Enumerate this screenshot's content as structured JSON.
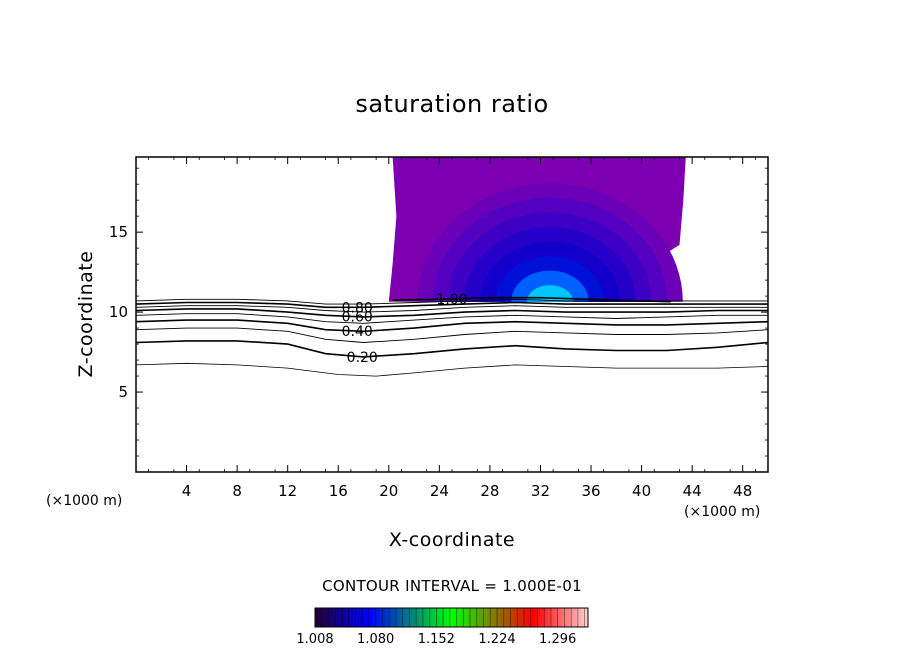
{
  "chart_data": {
    "type": "contour",
    "title": "saturation ratio",
    "xlabel": "X-coordinate",
    "ylabel": "Z-coordinate",
    "x_unit_left": "(×1000 m)",
    "x_unit_right": "(×1000 m)",
    "xlim": [
      0,
      50
    ],
    "ylim": [
      0,
      19.7
    ],
    "x_ticks": [
      4,
      8,
      12,
      16,
      20,
      24,
      28,
      32,
      36,
      40,
      44,
      48
    ],
    "y_ticks": [
      5,
      10,
      15
    ],
    "contour_levels": [
      {
        "value": 0.2,
        "label": "0.20",
        "label_x": 17.9,
        "points": [
          [
            0,
            8.1
          ],
          [
            4,
            8.2
          ],
          [
            8,
            8.2
          ],
          [
            12,
            8.0
          ],
          [
            15,
            7.4
          ],
          [
            18,
            7.2
          ],
          [
            22,
            7.4
          ],
          [
            26,
            7.7
          ],
          [
            30,
            7.9
          ],
          [
            34,
            7.7
          ],
          [
            38,
            7.6
          ],
          [
            42,
            7.6
          ],
          [
            46,
            7.8
          ],
          [
            50,
            8.1
          ]
        ]
      },
      {
        "value": 0.3,
        "label": "",
        "points": [
          [
            0,
            8.9
          ],
          [
            4,
            9.0
          ],
          [
            8,
            9.0
          ],
          [
            12,
            8.8
          ],
          [
            15,
            8.3
          ],
          [
            18,
            8.1
          ],
          [
            22,
            8.3
          ],
          [
            26,
            8.6
          ],
          [
            30,
            8.8
          ],
          [
            34,
            8.7
          ],
          [
            38,
            8.6
          ],
          [
            42,
            8.6
          ],
          [
            46,
            8.7
          ],
          [
            50,
            8.9
          ]
        ]
      },
      {
        "value": 0.4,
        "label": "0.40",
        "label_x": 17.5,
        "points": [
          [
            0,
            9.4
          ],
          [
            4,
            9.5
          ],
          [
            8,
            9.5
          ],
          [
            12,
            9.3
          ],
          [
            15,
            8.9
          ],
          [
            18,
            8.8
          ],
          [
            22,
            9.0
          ],
          [
            26,
            9.3
          ],
          [
            30,
            9.4
          ],
          [
            34,
            9.3
          ],
          [
            38,
            9.2
          ],
          [
            42,
            9.2
          ],
          [
            46,
            9.3
          ],
          [
            50,
            9.4
          ]
        ]
      },
      {
        "value": 0.5,
        "label": "",
        "points": [
          [
            0,
            9.8
          ],
          [
            4,
            9.9
          ],
          [
            8,
            9.9
          ],
          [
            12,
            9.7
          ],
          [
            15,
            9.4
          ],
          [
            18,
            9.3
          ],
          [
            22,
            9.5
          ],
          [
            26,
            9.7
          ],
          [
            30,
            9.8
          ],
          [
            34,
            9.7
          ],
          [
            38,
            9.6
          ],
          [
            42,
            9.7
          ],
          [
            46,
            9.8
          ],
          [
            50,
            9.8
          ]
        ]
      },
      {
        "value": 0.6,
        "label": "0.60",
        "label_x": 17.5,
        "points": [
          [
            0,
            10.1
          ],
          [
            4,
            10.2
          ],
          [
            8,
            10.2
          ],
          [
            12,
            10.0
          ],
          [
            15,
            9.8
          ],
          [
            18,
            9.7
          ],
          [
            22,
            9.8
          ],
          [
            26,
            10.0
          ],
          [
            30,
            10.1
          ],
          [
            34,
            10.0
          ],
          [
            38,
            10.0
          ],
          [
            42,
            10.0
          ],
          [
            46,
            10.1
          ],
          [
            50,
            10.1
          ]
        ]
      },
      {
        "value": 0.7,
        "label": "",
        "points": [
          [
            0,
            10.3
          ],
          [
            4,
            10.4
          ],
          [
            8,
            10.4
          ],
          [
            12,
            10.3
          ],
          [
            15,
            10.1
          ],
          [
            18,
            10.0
          ],
          [
            22,
            10.1
          ],
          [
            26,
            10.3
          ],
          [
            30,
            10.4
          ],
          [
            34,
            10.3
          ],
          [
            38,
            10.3
          ],
          [
            42,
            10.3
          ],
          [
            46,
            10.3
          ],
          [
            50,
            10.3
          ]
        ]
      },
      {
        "value": 0.8,
        "label": "0.80",
        "label_x": 17.5,
        "points": [
          [
            0,
            10.5
          ],
          [
            4,
            10.6
          ],
          [
            8,
            10.6
          ],
          [
            12,
            10.5
          ],
          [
            15,
            10.3
          ],
          [
            18,
            10.3
          ],
          [
            22,
            10.4
          ],
          [
            26,
            10.5
          ],
          [
            30,
            10.6
          ],
          [
            34,
            10.5
          ],
          [
            38,
            10.5
          ],
          [
            42,
            10.5
          ],
          [
            46,
            10.5
          ],
          [
            50,
            10.5
          ]
        ]
      },
      {
        "value": 0.9,
        "label": "",
        "points": [
          [
            0,
            10.7
          ],
          [
            4,
            10.8
          ],
          [
            8,
            10.8
          ],
          [
            12,
            10.7
          ],
          [
            15,
            10.5
          ],
          [
            18,
            10.5
          ],
          [
            22,
            10.6
          ],
          [
            26,
            10.7
          ],
          [
            30,
            10.8
          ],
          [
            34,
            10.7
          ],
          [
            38,
            10.7
          ],
          [
            42,
            10.7
          ],
          [
            46,
            10.7
          ],
          [
            50,
            10.7
          ]
        ]
      },
      {
        "value": 1.0,
        "label": "1.00",
        "label_x": 25.0,
        "points": [
          [
            20.3,
            10.75
          ],
          [
            24,
            10.8
          ],
          [
            28,
            10.9
          ],
          [
            32,
            10.9
          ],
          [
            36,
            10.8
          ],
          [
            40,
            10.7
          ],
          [
            42.3,
            10.65
          ]
        ]
      }
    ],
    "lower_contour": {
      "points": [
        [
          0,
          6.7
        ],
        [
          4,
          6.8
        ],
        [
          8,
          6.7
        ],
        [
          12,
          6.5
        ],
        [
          16,
          6.1
        ],
        [
          19,
          6.0
        ],
        [
          22,
          6.2
        ],
        [
          26,
          6.5
        ],
        [
          30,
          6.7
        ],
        [
          34,
          6.6
        ],
        [
          38,
          6.5
        ],
        [
          42,
          6.5
        ],
        [
          46,
          6.5
        ],
        [
          50,
          6.6
        ]
      ]
    },
    "supersaturated_region": {
      "x_range": [
        20.0,
        43.5
      ],
      "z_range": [
        10.65,
        19.7
      ],
      "colors": [
        "#7d00b0",
        "#6a00b8",
        "#5400c0",
        "#3d00c4",
        "#2600c8",
        "#1400cc",
        "#0010d8",
        "#0060ff",
        "#00c8ff"
      ]
    },
    "contour_interval_label": "CONTOUR INTERVAL = 1.000E-01",
    "colorbar": {
      "tick_labels": [
        "1.008",
        "1.080",
        "1.152",
        "1.224",
        "1.296"
      ],
      "range": [
        1.008,
        1.332
      ],
      "colors": [
        "#200030",
        "#0000ff",
        "#00ff00",
        "#ff0000",
        "#ffd0d0"
      ]
    }
  }
}
